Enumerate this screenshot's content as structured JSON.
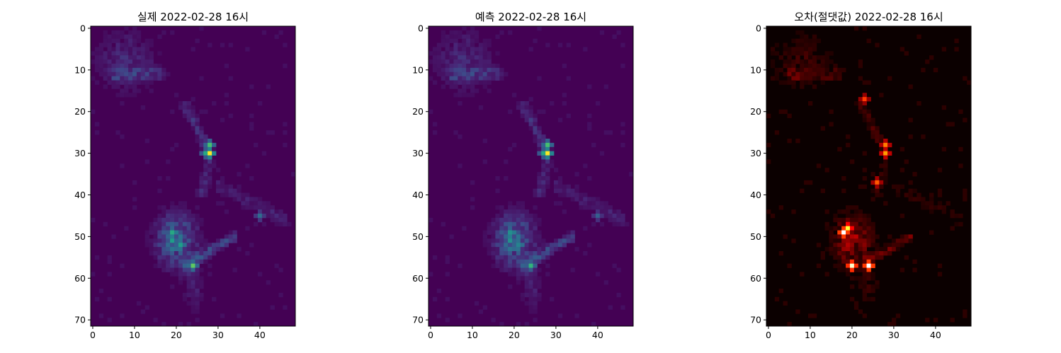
{
  "chart_data": [
    {
      "type": "heatmap",
      "title": "실제 2022-02-28 16시",
      "colormap": "viridis",
      "grid_shape": [
        72,
        49
      ],
      "xlim": [
        0,
        48
      ],
      "ylim": [
        0,
        71
      ],
      "x_ticks": [
        0,
        10,
        20,
        30,
        40
      ],
      "y_ticks": [
        0,
        10,
        20,
        30,
        40,
        50,
        60,
        70
      ],
      "grid": false,
      "hotspots": [
        {
          "x": 28,
          "y": 30,
          "value": 1.0
        },
        {
          "x": 28,
          "y": 28,
          "value": 0.7
        },
        {
          "x": 27,
          "y": 30,
          "value": 0.6
        },
        {
          "x": 24,
          "y": 57,
          "value": 0.75
        },
        {
          "x": 19,
          "y": 49,
          "value": 0.6
        },
        {
          "x": 19,
          "y": 51,
          "value": 0.55
        },
        {
          "x": 21,
          "y": 52,
          "value": 0.55
        },
        {
          "x": 40,
          "y": 45,
          "value": 0.35
        }
      ]
    },
    {
      "type": "heatmap",
      "title": "예측 2022-02-28 16시",
      "colormap": "viridis",
      "grid_shape": [
        72,
        49
      ],
      "xlim": [
        0,
        48
      ],
      "ylim": [
        0,
        71
      ],
      "x_ticks": [
        0,
        10,
        20,
        30,
        40
      ],
      "y_ticks": [
        0,
        10,
        20,
        30,
        40,
        50,
        60,
        70
      ],
      "grid": false,
      "hotspots": [
        {
          "x": 28,
          "y": 30,
          "value": 1.0
        },
        {
          "x": 28,
          "y": 28,
          "value": 0.7
        },
        {
          "x": 27,
          "y": 30,
          "value": 0.6
        },
        {
          "x": 24,
          "y": 57,
          "value": 0.65
        },
        {
          "x": 19,
          "y": 49,
          "value": 0.5
        },
        {
          "x": 19,
          "y": 51,
          "value": 0.5
        },
        {
          "x": 21,
          "y": 52,
          "value": 0.45
        },
        {
          "x": 40,
          "y": 45,
          "value": 0.3
        }
      ]
    },
    {
      "type": "heatmap",
      "title": "오차(절댓값) 2022-02-28 16시",
      "colormap": "hot",
      "grid_shape": [
        72,
        49
      ],
      "xlim": [
        0,
        48
      ],
      "ylim": [
        0,
        71
      ],
      "x_ticks": [
        0,
        10,
        20,
        30,
        40
      ],
      "y_ticks": [
        0,
        10,
        20,
        30,
        40,
        50,
        60,
        70
      ],
      "grid": false,
      "hotspots": [
        {
          "x": 18,
          "y": 49,
          "value": 1.0
        },
        {
          "x": 24,
          "y": 57,
          "value": 1.0
        },
        {
          "x": 20,
          "y": 57,
          "value": 0.95
        },
        {
          "x": 19,
          "y": 48,
          "value": 0.8
        },
        {
          "x": 28,
          "y": 30,
          "value": 0.6
        },
        {
          "x": 28,
          "y": 28,
          "value": 0.55
        },
        {
          "x": 26,
          "y": 37,
          "value": 0.5
        },
        {
          "x": 23,
          "y": 17,
          "value": 0.45
        }
      ]
    }
  ]
}
